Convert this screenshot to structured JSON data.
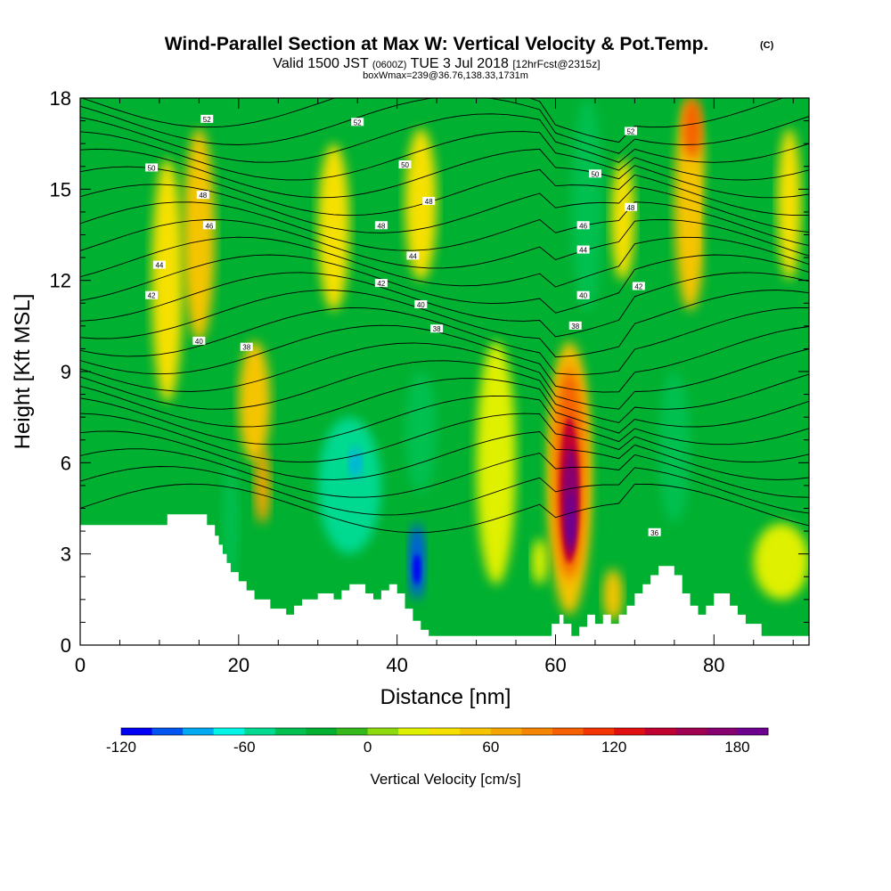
{
  "chart_data": {
    "type": "heatmap",
    "title": "Wind-Parallel Section at Max W: Vertical Velocity & Pot.Temp.",
    "copyright": "(C)",
    "subtitle_main": "Valid 1500 JST",
    "subtitle_utc": "(0600Z)",
    "subtitle_date": "TUE 3 Jul 2018",
    "subtitle_fcst": "[12hrFcst@2315z]",
    "subtitle_box": "boxWmax=239@36.76,138.33,1731m",
    "xlabel": "Distance [nm]",
    "ylabel": "Height [Kft MSL]",
    "xlim": [
      0,
      92
    ],
    "ylim": [
      0,
      18
    ],
    "x_ticks": [
      0,
      20,
      40,
      60,
      80
    ],
    "y_ticks": [
      0,
      3,
      6,
      9,
      12,
      15,
      18
    ],
    "colorbar": {
      "label": "Vertical Velocity [cm/s]",
      "levels": [
        -120,
        -105,
        -90,
        -75,
        -60,
        -45,
        -30,
        -15,
        0,
        15,
        30,
        45,
        60,
        75,
        90,
        105,
        120,
        135,
        150,
        165,
        180,
        195,
        210,
        225
      ],
      "tick_labels": [
        -120,
        -60,
        0,
        60,
        120,
        180
      ],
      "colors": [
        "#0000f5",
        "#0055f0",
        "#00aaf0",
        "#00f5e6",
        "#00d990",
        "#00c050",
        "#00b030",
        "#35b81c",
        "#8ed80e",
        "#dff000",
        "#f5e000",
        "#f5c400",
        "#f5a500",
        "#f58500",
        "#f56000",
        "#f53500",
        "#e01010",
        "#c00030",
        "#a00050",
        "#860070",
        "#6e0090"
      ]
    },
    "velocity_cells": [
      {
        "x": [
          9,
          13
        ],
        "y": [
          8,
          16
        ],
        "w": 40
      },
      {
        "x": [
          13,
          17
        ],
        "y": [
          10,
          17
        ],
        "w": 45
      },
      {
        "x": [
          20,
          24
        ],
        "y": [
          6,
          10
        ],
        "w": 45
      },
      {
        "x": [
          22,
          24
        ],
        "y": [
          4,
          6.5
        ],
        "w": 65
      },
      {
        "x": [
          18,
          20
        ],
        "y": [
          2,
          6
        ],
        "w": -45
      },
      {
        "x": [
          30,
          38
        ],
        "y": [
          3,
          7.5
        ],
        "w": -50
      },
      {
        "x": [
          34,
          35.5
        ],
        "y": [
          5.5,
          6.5
        ],
        "w": -80
      },
      {
        "x": [
          41.5,
          43.5
        ],
        "y": [
          1.5,
          4
        ],
        "w": -100
      },
      {
        "x": [
          42,
          43
        ],
        "y": [
          2,
          3
        ],
        "w": -120
      },
      {
        "x": [
          41,
          45
        ],
        "y": [
          5,
          9
        ],
        "w": -45
      },
      {
        "x": [
          30,
          34
        ],
        "y": [
          11,
          16.5
        ],
        "w": 30
      },
      {
        "x": [
          41,
          45
        ],
        "y": [
          12,
          17
        ],
        "w": 40
      },
      {
        "x": [
          50,
          55
        ],
        "y": [
          2,
          10
        ],
        "w": 15
      },
      {
        "x": [
          57,
          59
        ],
        "y": [
          2,
          3.5
        ],
        "w": 25
      },
      {
        "x": [
          59,
          64.5
        ],
        "y": [
          1,
          10
        ],
        "w": 45
      },
      {
        "x": [
          59.5,
          64
        ],
        "y": [
          2,
          9.5
        ],
        "w": 70
      },
      {
        "x": [
          60,
          63.5
        ],
        "y": [
          2.3,
          9
        ],
        "w": 100
      },
      {
        "x": [
          60.5,
          63
        ],
        "y": [
          2.7,
          7.5
        ],
        "w": 140
      },
      {
        "x": [
          61,
          62.8
        ],
        "y": [
          3,
          6.5
        ],
        "w": 175
      },
      {
        "x": [
          61.4,
          62.4
        ],
        "y": [
          3.3,
          5
        ],
        "w": 210
      },
      {
        "x": [
          61.6,
          62.2
        ],
        "y": [
          3.5,
          4.3
        ],
        "w": 225
      },
      {
        "x": [
          66,
          68.5
        ],
        "y": [
          0.8,
          2.5
        ],
        "w": 55
      },
      {
        "x": [
          62,
          66
        ],
        "y": [
          11,
          18
        ],
        "w": -45
      },
      {
        "x": [
          67,
          70
        ],
        "y": [
          12,
          16
        ],
        "w": 30
      },
      {
        "x": [
          73,
          77
        ],
        "y": [
          4,
          9
        ],
        "w": -45
      },
      {
        "x": [
          75,
          79
        ],
        "y": [
          11,
          18
        ],
        "w": 50
      },
      {
        "x": [
          76,
          78.5
        ],
        "y": [
          16,
          18
        ],
        "w": 90
      },
      {
        "x": [
          79,
          82
        ],
        "y": [
          12,
          16
        ],
        "w": -30
      },
      {
        "x": [
          85,
          92
        ],
        "y": [
          1.5,
          4
        ],
        "w": 25
      },
      {
        "x": [
          88,
          91
        ],
        "y": [
          12,
          17
        ],
        "w": 30
      }
    ],
    "theta_labels": [
      {
        "x": 16,
        "y": 17.3,
        "text": "52"
      },
      {
        "x": 35,
        "y": 17.2,
        "text": "52"
      },
      {
        "x": 69.5,
        "y": 16.9,
        "text": "52"
      },
      {
        "x": 9,
        "y": 15.7,
        "text": "50"
      },
      {
        "x": 41,
        "y": 15.8,
        "text": "50"
      },
      {
        "x": 65,
        "y": 15.5,
        "text": "50"
      },
      {
        "x": 15.5,
        "y": 14.8,
        "text": "48"
      },
      {
        "x": 44,
        "y": 14.6,
        "text": "48"
      },
      {
        "x": 38,
        "y": 13.8,
        "text": "48"
      },
      {
        "x": 69.5,
        "y": 14.4,
        "text": "48"
      },
      {
        "x": 16.3,
        "y": 13.8,
        "text": "46"
      },
      {
        "x": 63.5,
        "y": 13.8,
        "text": "46"
      },
      {
        "x": 10,
        "y": 12.5,
        "text": "44"
      },
      {
        "x": 42,
        "y": 12.8,
        "text": "44"
      },
      {
        "x": 63.5,
        "y": 13.0,
        "text": "44"
      },
      {
        "x": 9,
        "y": 11.5,
        "text": "42"
      },
      {
        "x": 38,
        "y": 11.9,
        "text": "42"
      },
      {
        "x": 70.5,
        "y": 11.8,
        "text": "42"
      },
      {
        "x": 43,
        "y": 11.2,
        "text": "40"
      },
      {
        "x": 15,
        "y": 10.0,
        "text": "40"
      },
      {
        "x": 63.5,
        "y": 11.5,
        "text": "40"
      },
      {
        "x": 21,
        "y": 9.8,
        "text": "38"
      },
      {
        "x": 45,
        "y": 10.4,
        "text": "38"
      },
      {
        "x": 62.5,
        "y": 10.5,
        "text": "38"
      },
      {
        "x": 72.5,
        "y": 3.7,
        "text": "36"
      }
    ],
    "terrain": [
      [
        0,
        3.95
      ],
      [
        8,
        3.95
      ],
      [
        11,
        3.95
      ],
      [
        11,
        4.3
      ],
      [
        16,
        4.3
      ],
      [
        16,
        3.95
      ],
      [
        17,
        3.95
      ],
      [
        17,
        3.6
      ],
      [
        17.5,
        3.6
      ],
      [
        17.5,
        3.3
      ],
      [
        18,
        3.3
      ],
      [
        18,
        3.0
      ],
      [
        18.5,
        3.0
      ],
      [
        18.5,
        2.7
      ],
      [
        19,
        2.7
      ],
      [
        19,
        2.4
      ],
      [
        20,
        2.4
      ],
      [
        20,
        2.1
      ],
      [
        21,
        2.1
      ],
      [
        21,
        1.8
      ],
      [
        22,
        1.8
      ],
      [
        22,
        1.5
      ],
      [
        24,
        1.5
      ],
      [
        24,
        1.2
      ],
      [
        26,
        1.2
      ],
      [
        26,
        1.0
      ],
      [
        27,
        1.0
      ],
      [
        27,
        1.3
      ],
      [
        28,
        1.3
      ],
      [
        28,
        1.5
      ],
      [
        30,
        1.5
      ],
      [
        30,
        1.7
      ],
      [
        32,
        1.7
      ],
      [
        32,
        1.5
      ],
      [
        33,
        1.5
      ],
      [
        33,
        1.8
      ],
      [
        34,
        1.8
      ],
      [
        34,
        2.0
      ],
      [
        36,
        2.0
      ],
      [
        36,
        1.7
      ],
      [
        37,
        1.7
      ],
      [
        37,
        1.5
      ],
      [
        38,
        1.5
      ],
      [
        38,
        1.8
      ],
      [
        39,
        1.8
      ],
      [
        39,
        2.0
      ],
      [
        40,
        2.0
      ],
      [
        40,
        1.7
      ],
      [
        41,
        1.7
      ],
      [
        41,
        1.2
      ],
      [
        42,
        1.2
      ],
      [
        42,
        0.8
      ],
      [
        43,
        0.8
      ],
      [
        43,
        0.5
      ],
      [
        44,
        0.5
      ],
      [
        44,
        0.3
      ],
      [
        59.5,
        0.3
      ],
      [
        59.5,
        0.7
      ],
      [
        60.5,
        0.7
      ],
      [
        60.5,
        1.0
      ],
      [
        61,
        1.0
      ],
      [
        61,
        0.7
      ],
      [
        62,
        0.7
      ],
      [
        62,
        0.3
      ],
      [
        63,
        0.3
      ],
      [
        63,
        0.6
      ],
      [
        64,
        0.6
      ],
      [
        64,
        1.0
      ],
      [
        65,
        1.0
      ],
      [
        65,
        0.7
      ],
      [
        66,
        0.7
      ],
      [
        66,
        1.0
      ],
      [
        67,
        1.0
      ],
      [
        67,
        0.7
      ],
      [
        68,
        0.7
      ],
      [
        68,
        1.0
      ],
      [
        69,
        1.0
      ],
      [
        69,
        1.3
      ],
      [
        70,
        1.3
      ],
      [
        70,
        1.7
      ],
      [
        71,
        1.7
      ],
      [
        71,
        2.0
      ],
      [
        72,
        2.0
      ],
      [
        72,
        2.3
      ],
      [
        73,
        2.3
      ],
      [
        73,
        2.6
      ],
      [
        75,
        2.6
      ],
      [
        75,
        2.3
      ],
      [
        76,
        2.3
      ],
      [
        76,
        1.7
      ],
      [
        77,
        1.7
      ],
      [
        77,
        1.3
      ],
      [
        78,
        1.3
      ],
      [
        78,
        1.0
      ],
      [
        79,
        1.0
      ],
      [
        79,
        1.3
      ],
      [
        80,
        1.3
      ],
      [
        80,
        1.7
      ],
      [
        82,
        1.7
      ],
      [
        82,
        1.3
      ],
      [
        83,
        1.3
      ],
      [
        83,
        1.0
      ],
      [
        84,
        1.0
      ],
      [
        84,
        0.7
      ],
      [
        86,
        0.7
      ],
      [
        86,
        0.3
      ],
      [
        92,
        0.3
      ]
    ]
  }
}
